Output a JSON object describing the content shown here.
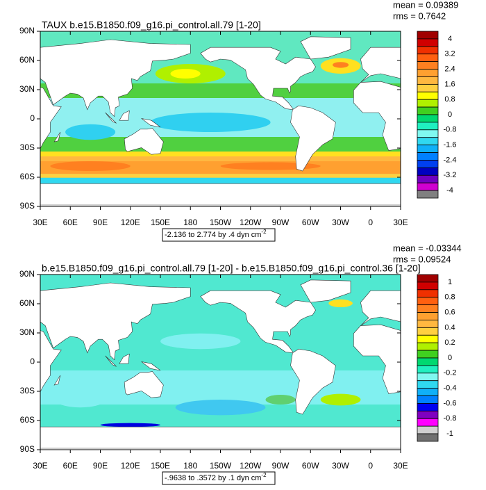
{
  "panels": [
    {
      "title": "TAUX b.e15.B1850.f09_g16.pi_control.all.79 [1-20]",
      "mean": "mean = 0.09389",
      "rms": "rms = 0.7642",
      "lat_labels": [
        "90N",
        "60N",
        "30N",
        "0",
        "30S",
        "60S",
        "90S"
      ],
      "lon_labels": [
        "30E",
        "60E",
        "90E",
        "120E",
        "150E",
        "180",
        "150W",
        "120W",
        "90W",
        "60W",
        "30W",
        "0",
        "30E"
      ],
      "colorbar_labels": [
        "4",
        "3.2",
        "2.4",
        "1.6",
        "0.8",
        "0",
        "-0.8",
        "-1.6",
        "-2.4",
        "-3.2",
        "-4"
      ],
      "range_label": "-2.136 to 2.774 by .4 dyn cm",
      "range_label_sup": "-2"
    },
    {
      "title": "b.e15.B1850.f09_g16.pi_control.all.79 [1-20] - b.e15.B1850.f09_g16.pi_control.36 [1-20]",
      "mean": "mean = -0.03344",
      "rms": "rms = 0.09524",
      "lat_labels": [
        "90N",
        "60N",
        "30N",
        "0",
        "30S",
        "60S",
        "90S"
      ],
      "lon_labels": [
        "30E",
        "60E",
        "90E",
        "120E",
        "150E",
        "180",
        "150W",
        "120W",
        "90W",
        "60W",
        "30W",
        "0",
        "30E"
      ],
      "colorbar_labels": [
        "1",
        "0.8",
        "0.6",
        "0.4",
        "0.2",
        "0",
        "-0.2",
        "-0.4",
        "-0.6",
        "-0.8",
        "-1"
      ],
      "range_label": "-.9638 to .3572 by .1 dyn cm",
      "range_label_sup": "-2"
    }
  ]
}
